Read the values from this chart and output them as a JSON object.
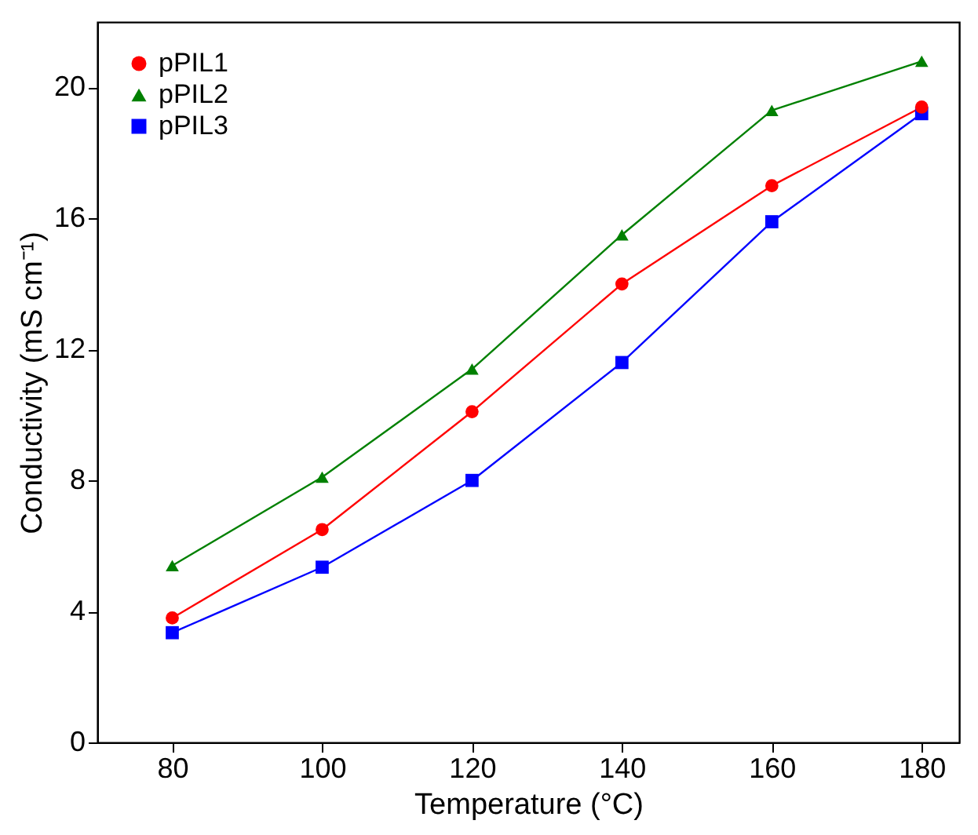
{
  "chart_data": {
    "type": "line",
    "xlabel": "Temperature (°C)",
    "ylabel": "Conductivity (mS cm⁻¹)",
    "x": [
      80,
      100,
      120,
      140,
      160,
      180
    ],
    "series": [
      {
        "name": "pPIL1",
        "color": "#ff0000",
        "marker": "circle",
        "values": [
          3.8,
          6.5,
          10.1,
          14.0,
          17.0,
          19.4
        ]
      },
      {
        "name": "pPIL2",
        "color": "#008000",
        "marker": "triangle",
        "values": [
          5.4,
          8.1,
          11.4,
          15.5,
          19.3,
          20.8
        ]
      },
      {
        "name": "pPIL3",
        "color": "#0000ff",
        "marker": "square",
        "values": [
          3.35,
          5.35,
          8.0,
          11.6,
          15.9,
          19.2
        ]
      }
    ],
    "xlim": [
      70,
      185
    ],
    "xticks": [
      80,
      100,
      120,
      140,
      160,
      180
    ],
    "ylim": [
      0,
      22
    ],
    "yticks": [
      0,
      4,
      8,
      12,
      16,
      20
    ],
    "grid": false,
    "legend": "top left",
    "line_style": "solid"
  }
}
